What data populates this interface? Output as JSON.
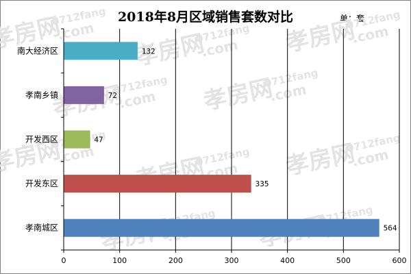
{
  "chart_data": {
    "type": "bar",
    "orientation": "horizontal",
    "title": "2018年8月区域销售套数对比",
    "unit_label": "单：套",
    "categories": [
      "南大经济区",
      "孝南乡镇",
      "开发西区",
      "开发东区",
      "孝南城区"
    ],
    "values": [
      132,
      72,
      47,
      335,
      564
    ],
    "bar_colors": [
      "#4bacc6",
      "#8064a2",
      "#9bbb59",
      "#c0504d",
      "#4f81bd"
    ],
    "xlim": [
      0,
      600
    ],
    "x_ticks": [
      "0",
      "100",
      "200",
      "300",
      "400",
      "500",
      "600"
    ],
    "grid": "vertical",
    "data_labels": true
  },
  "watermark": {
    "text": "孝房网",
    "subtext": "0712fang",
    "domain": ".com"
  }
}
